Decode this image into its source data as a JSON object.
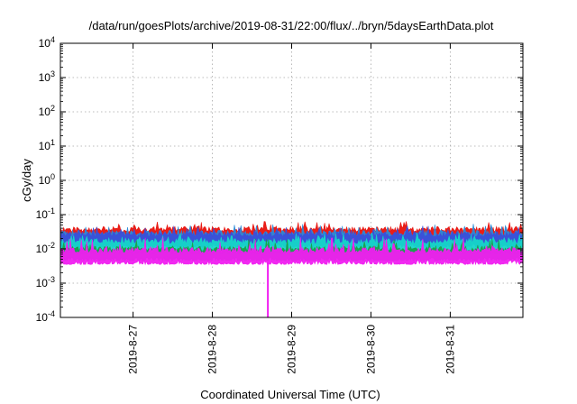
{
  "chart_data": {
    "type": "area",
    "title": "/data/run/goesPlots/archive/2019-08-31/22:00/flux/../bryn/5daysEarthData.plot",
    "xlabel": "Coordinated Universal Time (UTC)",
    "ylabel": "cGy/day",
    "y_scale": "log",
    "ylim": [
      0.0001,
      10000
    ],
    "y_ticks": [
      {
        "value": 0.0001,
        "base": "10",
        "exp": "-4"
      },
      {
        "value": 0.001,
        "base": "10",
        "exp": "-3"
      },
      {
        "value": 0.01,
        "base": "10",
        "exp": "-2"
      },
      {
        "value": 0.1,
        "base": "10",
        "exp": "-1"
      },
      {
        "value": 1,
        "base": "10",
        "exp": "0"
      },
      {
        "value": 10,
        "base": "10",
        "exp": "1"
      },
      {
        "value": 100,
        "base": "10",
        "exp": "2"
      },
      {
        "value": 1000,
        "base": "10",
        "exp": "3"
      },
      {
        "value": 10000,
        "base": "10",
        "exp": "4"
      }
    ],
    "xlim": [
      "2019-08-26T02:00",
      "2019-08-31T22:00"
    ],
    "x_ticks": [
      "2019-8-27",
      "2019-8-28",
      "2019-8-29",
      "2019-8-30",
      "2019-8-31"
    ],
    "x_tick_dates": [
      "2019-08-27",
      "2019-08-28",
      "2019-08-29",
      "2019-08-30",
      "2019-08-31"
    ],
    "grid": true,
    "legend": "none",
    "series": [
      {
        "color": "#e8120c",
        "low": 0.015,
        "high": 0.045,
        "spike_high": 0.065
      },
      {
        "color": "#2a8ad8",
        "low": 0.012,
        "high": 0.035,
        "spike_high": 0.055
      },
      {
        "color": "#3b4fd8",
        "low": 0.011,
        "high": 0.032,
        "spike_high": 0.05
      },
      {
        "color": "#15d6c8",
        "low": 0.007,
        "high": 0.02,
        "spike_high": 0.03
      },
      {
        "color": "#1aa04a",
        "low": 0.0045,
        "high": 0.012,
        "spike_high": 0.02
      },
      {
        "color": "#f01ef0",
        "low": 0.0035,
        "high": 0.011,
        "spike_high": 0.022
      }
    ],
    "dropout": {
      "date": "2019-08-28T16:48",
      "color": "#f01ef0",
      "value": 0.0001
    }
  }
}
